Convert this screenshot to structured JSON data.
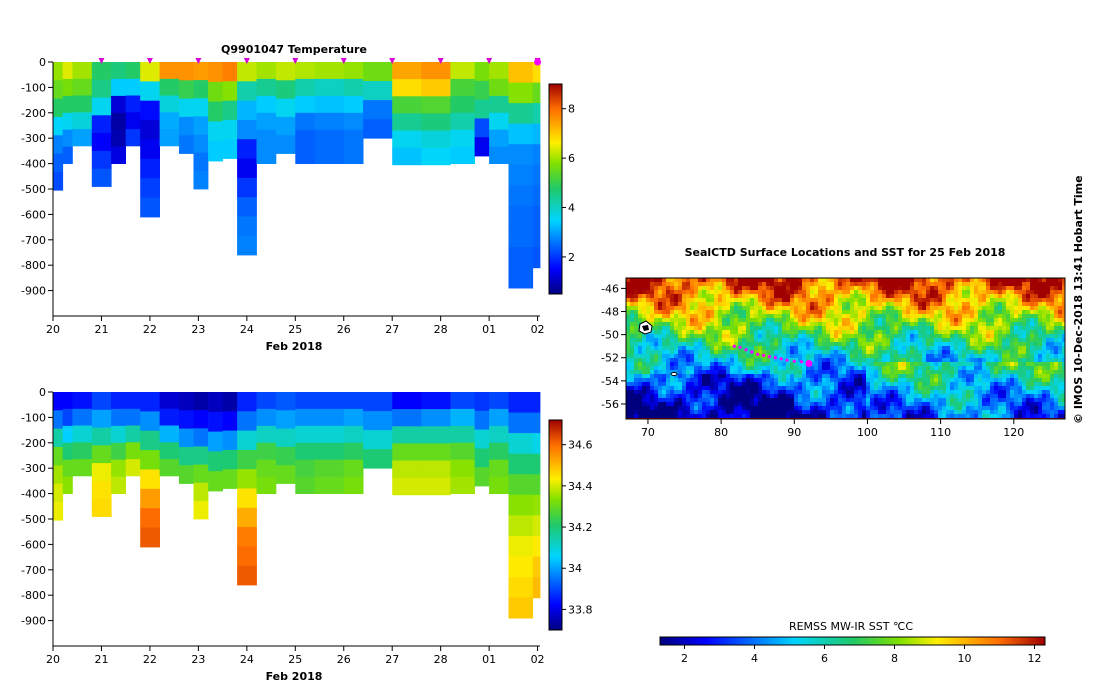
{
  "chart_data": [
    {
      "type": "heatmap",
      "title": "Q9901047  Temperature",
      "xlabel": "Feb 2018",
      "ylabel": "",
      "x_tick_labels": [
        "20",
        "21",
        "22",
        "23",
        "24",
        "25",
        "26",
        "27",
        "28",
        "01",
        "02"
      ],
      "y_tick_labels": [
        "0",
        "-100",
        "-200",
        "-300",
        "-400",
        "-500",
        "-600",
        "-700",
        "-800",
        "-900"
      ],
      "y_ticks": [
        0,
        -100,
        -200,
        -300,
        -400,
        -500,
        -600,
        -700,
        -800,
        -900
      ],
      "ylim": [
        -1000,
        0
      ],
      "xlim": [
        20,
        30.05
      ],
      "colorbar": {
        "min": 0.5,
        "max": 9,
        "tick_values": [
          2,
          4,
          6,
          8
        ],
        "tick_labels": [
          "2",
          "4",
          "6",
          "8"
        ]
      },
      "surface_markers": [
        21.0,
        22.0,
        23.0,
        24.0,
        25.0,
        26.0,
        27.0,
        28.0,
        29.0,
        30.0
      ],
      "profiles": [
        {
          "x0": 20.0,
          "x1": 20.2,
          "max_depth": -505,
          "values": [
            5.9,
            5.5,
            4.8,
            3.5,
            2.7,
            2.4,
            2.2
          ]
        },
        {
          "x0": 20.2,
          "x1": 20.4,
          "max_depth": -400,
          "values": [
            6.4,
            5.7,
            4.8,
            3.6,
            2.8,
            2.4
          ]
        },
        {
          "x0": 20.4,
          "x1": 20.8,
          "max_depth": -330,
          "values": [
            6.0,
            5.5,
            4.8,
            3.8,
            3.0
          ]
        },
        {
          "x0": 20.8,
          "x1": 21.2,
          "max_depth": -490,
          "values": [
            4.8,
            4.5,
            3.6,
            1.8,
            1.5,
            2.0,
            2.3
          ]
        },
        {
          "x0": 21.2,
          "x1": 21.5,
          "max_depth": -400,
          "values": [
            4.6,
            3.4,
            1.2,
            0.8,
            0.9,
            1.3
          ]
        },
        {
          "x0": 21.5,
          "x1": 21.8,
          "max_depth": -330,
          "values": [
            4.8,
            3.4,
            1.8,
            1.4,
            2.0
          ]
        },
        {
          "x0": 21.8,
          "x1": 22.2,
          "max_depth": -610,
          "values": [
            6.4,
            3.6,
            1.6,
            1.2,
            1.4,
            1.8,
            2.1,
            2.3
          ]
        },
        {
          "x0": 22.2,
          "x1": 22.6,
          "max_depth": -330,
          "values": [
            7.6,
            4.8,
            3.8,
            3.1,
            3.0
          ]
        },
        {
          "x0": 22.6,
          "x1": 22.9,
          "max_depth": -360,
          "values": [
            7.6,
            5.0,
            3.6,
            2.8,
            2.6
          ]
        },
        {
          "x0": 22.9,
          "x1": 23.2,
          "max_depth": -500,
          "values": [
            7.5,
            4.8,
            3.6,
            3.0,
            2.8,
            2.6,
            2.7
          ]
        },
        {
          "x0": 23.2,
          "x1": 23.5,
          "max_depth": -390,
          "values": [
            7.6,
            5.6,
            4.8,
            3.6,
            3.4
          ]
        },
        {
          "x0": 23.5,
          "x1": 23.8,
          "max_depth": -380,
          "values": [
            7.8,
            5.8,
            4.5,
            3.6,
            3.4
          ]
        },
        {
          "x0": 23.8,
          "x1": 24.2,
          "max_depth": -760,
          "values": [
            6.2,
            4.2,
            3.2,
            2.8,
            1.8,
            1.4,
            2.0,
            2.4,
            2.6,
            2.7
          ]
        },
        {
          "x0": 24.2,
          "x1": 24.6,
          "max_depth": -400,
          "values": [
            6.0,
            4.4,
            3.4,
            3.0,
            2.8,
            2.8
          ]
        },
        {
          "x0": 24.6,
          "x1": 25.0,
          "max_depth": -360,
          "values": [
            6.2,
            4.6,
            3.6,
            3.0,
            2.8
          ]
        },
        {
          "x0": 25.0,
          "x1": 25.4,
          "max_depth": -400,
          "values": [
            6.1,
            4.2,
            3.4,
            2.6,
            2.4,
            2.4
          ]
        },
        {
          "x0": 25.4,
          "x1": 26.0,
          "max_depth": -400,
          "values": [
            6.0,
            4.0,
            3.3,
            2.7,
            2.5,
            2.5
          ]
        },
        {
          "x0": 26.0,
          "x1": 26.4,
          "max_depth": -400,
          "values": [
            5.9,
            4.2,
            3.4,
            2.8,
            2.6,
            2.6
          ]
        },
        {
          "x0": 26.4,
          "x1": 27.0,
          "max_depth": -300,
          "values": [
            5.6,
            4.0,
            2.6,
            2.4
          ]
        },
        {
          "x0": 27.0,
          "x1": 27.6,
          "max_depth": -405,
          "values": [
            7.4,
            6.8,
            5.2,
            4.4,
            3.6,
            3.3
          ]
        },
        {
          "x0": 27.6,
          "x1": 28.2,
          "max_depth": -405,
          "values": [
            7.6,
            7.0,
            5.3,
            4.6,
            3.8,
            3.5
          ]
        },
        {
          "x0": 28.2,
          "x1": 28.7,
          "max_depth": -400,
          "values": [
            6.2,
            5.2,
            4.8,
            4.2,
            3.6,
            3.4
          ]
        },
        {
          "x0": 28.7,
          "x1": 29.0,
          "max_depth": -370,
          "values": [
            5.7,
            5.0,
            4.4,
            2.2,
            1.4
          ]
        },
        {
          "x0": 29.0,
          "x1": 29.4,
          "max_depth": -400,
          "values": [
            6.0,
            5.6,
            4.4,
            3.6,
            3.0,
            2.8
          ]
        },
        {
          "x0": 29.4,
          "x1": 29.9,
          "max_depth": -890,
          "values": [
            7.1,
            5.8,
            4.4,
            3.3,
            2.8,
            2.7,
            2.6,
            2.5,
            2.5,
            2.4,
            2.4
          ]
        },
        {
          "x0": 29.9,
          "x1": 30.05,
          "max_depth": -810,
          "values": [
            6.8,
            5.5,
            4.2,
            3.2,
            2.7,
            2.6,
            2.5,
            2.4,
            2.4,
            2.3
          ]
        }
      ]
    },
    {
      "type": "heatmap",
      "title": "",
      "xlabel": "Feb 2018",
      "ylabel": "",
      "x_tick_labels": [
        "20",
        "21",
        "22",
        "23",
        "24",
        "25",
        "26",
        "27",
        "28",
        "01",
        "02"
      ],
      "y_tick_labels": [
        "0",
        "-100",
        "-200",
        "-300",
        "-400",
        "-500",
        "-600",
        "-700",
        "-800",
        "-900"
      ],
      "y_ticks": [
        0,
        -100,
        -200,
        -300,
        -400,
        -500,
        -600,
        -700,
        -800,
        -900
      ],
      "ylim": [
        -1000,
        0
      ],
      "xlim": [
        20,
        30.05
      ],
      "colorbar": {
        "min": 33.7,
        "max": 34.72,
        "tick_values": [
          33.8,
          34,
          34.2,
          34.4,
          34.6
        ],
        "tick_labels": [
          "33.8",
          "34",
          "34.2",
          "34.4",
          "34.6"
        ]
      },
      "profiles": [
        {
          "x0": 20.0,
          "x1": 20.2,
          "max_depth": -505,
          "values": [
            33.82,
            33.95,
            34.15,
            34.3,
            34.36,
            34.4,
            34.42
          ]
        },
        {
          "x0": 20.2,
          "x1": 20.4,
          "max_depth": -400,
          "values": [
            33.82,
            33.9,
            34.05,
            34.2,
            34.3,
            34.34
          ]
        },
        {
          "x0": 20.4,
          "x1": 20.8,
          "max_depth": -330,
          "values": [
            33.84,
            33.95,
            34.1,
            34.22,
            34.3
          ]
        },
        {
          "x0": 20.8,
          "x1": 21.2,
          "max_depth": -490,
          "values": [
            33.9,
            34.0,
            34.15,
            34.3,
            34.42,
            34.45,
            34.46
          ]
        },
        {
          "x0": 21.2,
          "x1": 21.5,
          "max_depth": -400,
          "values": [
            33.86,
            33.95,
            34.1,
            34.25,
            34.35,
            34.38
          ]
        },
        {
          "x0": 21.5,
          "x1": 21.8,
          "max_depth": -330,
          "values": [
            33.86,
            33.95,
            34.15,
            34.32,
            34.4
          ]
        },
        {
          "x0": 21.8,
          "x1": 22.2,
          "max_depth": -610,
          "values": [
            33.86,
            33.98,
            34.18,
            34.32,
            34.45,
            34.54,
            34.6,
            34.62
          ]
        },
        {
          "x0": 22.2,
          "x1": 22.6,
          "max_depth": -330,
          "values": [
            33.78,
            33.85,
            34.02,
            34.2,
            34.28
          ]
        },
        {
          "x0": 22.6,
          "x1": 22.9,
          "max_depth": -360,
          "values": [
            33.76,
            33.84,
            33.98,
            34.18,
            34.28
          ]
        },
        {
          "x0": 22.9,
          "x1": 23.2,
          "max_depth": -500,
          "values": [
            33.74,
            33.82,
            33.95,
            34.18,
            34.3,
            34.38,
            34.42
          ]
        },
        {
          "x0": 23.2,
          "x1": 23.5,
          "max_depth": -390,
          "values": [
            33.76,
            33.84,
            34.0,
            34.2,
            34.3
          ]
        },
        {
          "x0": 23.5,
          "x1": 23.8,
          "max_depth": -380,
          "values": [
            33.74,
            33.82,
            33.98,
            34.2,
            34.3
          ]
        },
        {
          "x0": 23.8,
          "x1": 24.2,
          "max_depth": -760,
          "values": [
            33.86,
            33.95,
            34.1,
            34.25,
            34.35,
            34.45,
            34.52,
            34.58,
            34.6,
            34.62
          ]
        },
        {
          "x0": 24.2,
          "x1": 24.6,
          "max_depth": -400,
          "values": [
            33.9,
            33.98,
            34.12,
            34.25,
            34.3,
            34.32
          ]
        },
        {
          "x0": 24.6,
          "x1": 25.0,
          "max_depth": -360,
          "values": [
            33.92,
            34.0,
            34.12,
            34.24,
            34.3
          ]
        },
        {
          "x0": 25.0,
          "x1": 25.4,
          "max_depth": -400,
          "values": [
            33.9,
            33.98,
            34.1,
            34.2,
            34.26,
            34.28
          ]
        },
        {
          "x0": 25.4,
          "x1": 26.0,
          "max_depth": -400,
          "values": [
            33.9,
            33.98,
            34.1,
            34.2,
            34.28,
            34.3
          ]
        },
        {
          "x0": 26.0,
          "x1": 26.4,
          "max_depth": -400,
          "values": [
            33.9,
            34.0,
            34.12,
            34.22,
            34.3,
            34.32
          ]
        },
        {
          "x0": 26.4,
          "x1": 27.0,
          "max_depth": -300,
          "values": [
            33.9,
            33.98,
            34.1,
            34.2
          ]
        },
        {
          "x0": 27.0,
          "x1": 27.6,
          "max_depth": -405,
          "values": [
            33.82,
            33.95,
            34.15,
            34.3,
            34.38,
            34.4
          ]
        },
        {
          "x0": 27.6,
          "x1": 28.2,
          "max_depth": -405,
          "values": [
            33.84,
            33.98,
            34.15,
            34.3,
            34.38,
            34.4
          ]
        },
        {
          "x0": 28.2,
          "x1": 28.7,
          "max_depth": -400,
          "values": [
            33.9,
            34.02,
            34.15,
            34.28,
            34.34,
            34.36
          ]
        },
        {
          "x0": 28.7,
          "x1": 29.0,
          "max_depth": -370,
          "values": [
            33.88,
            33.95,
            34.1,
            34.2,
            34.28
          ]
        },
        {
          "x0": 29.0,
          "x1": 29.4,
          "max_depth": -400,
          "values": [
            33.9,
            34.0,
            34.12,
            34.22,
            34.3,
            34.32
          ]
        },
        {
          "x0": 29.4,
          "x1": 29.9,
          "max_depth": -890,
          "values": [
            33.86,
            33.95,
            34.1,
            34.2,
            34.28,
            34.34,
            34.38,
            34.42,
            34.44,
            34.46,
            34.48
          ]
        },
        {
          "x0": 29.9,
          "x1": 30.05,
          "max_depth": -810,
          "values": [
            33.86,
            33.95,
            34.08,
            34.2,
            34.28,
            34.35,
            34.4,
            34.44,
            34.48,
            34.5
          ]
        }
      ]
    },
    {
      "type": "heatmap",
      "title": "SealCTD Surface Locations and SST for 25 Feb 2018",
      "xlabel": "",
      "ylabel": "",
      "x_tick_labels": [
        "70",
        "80",
        "90",
        "100",
        "110",
        "120"
      ],
      "x_ticks": [
        70,
        80,
        90,
        100,
        110,
        120
      ],
      "y_tick_labels": [
        "-46",
        "-48",
        "-50",
        "-52",
        "-54",
        "-56"
      ],
      "y_ticks": [
        -46,
        -48,
        -50,
        -52,
        -54,
        -56
      ],
      "xlim": [
        67,
        127
      ],
      "ylim": [
        -57.3,
        -45.1
      ],
      "colorbar": {
        "label": "REMSS MW-IR SST ℃C",
        "min": 1.3,
        "max": 12.3,
        "tick_values": [
          2,
          4,
          6,
          8,
          10,
          12
        ],
        "tick_labels": [
          "2",
          "4",
          "6",
          "8",
          "10",
          "12"
        ]
      },
      "track": {
        "lon": [
          81.8,
          82.6,
          83.4,
          84.2,
          85.0,
          85.8,
          86.6,
          87.4,
          88.2,
          89.0,
          90.0,
          91.0,
          92.0
        ],
        "lat": [
          -51.0,
          -51.1,
          -51.3,
          -51.5,
          -51.7,
          -51.8,
          -51.9,
          -52.0,
          -52.1,
          -52.2,
          -52.3,
          -52.35,
          -52.4
        ]
      },
      "current_location": {
        "lon": 92.0,
        "lat": -52.5
      }
    }
  ],
  "credit": "©  IMOS 10-Dec-2018 13:41 Hobart Time"
}
